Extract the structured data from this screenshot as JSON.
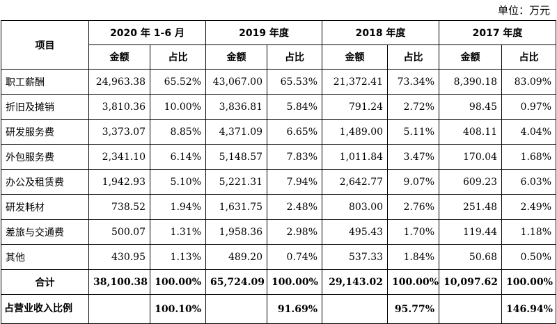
{
  "unit_label": "单位：万元",
  "header": {
    "item": "项目",
    "periods": [
      "2020 年 1-6 月",
      "2019 年度",
      "2018 年度",
      "2017 年度"
    ],
    "amount": "金额",
    "ratio": "占比"
  },
  "rows": [
    {
      "label": "职工薪酬",
      "cells": [
        "24,963.38",
        "65.52%",
        "43,067.00",
        "65.53%",
        "21,372.41",
        "73.34%",
        "8,390.18",
        "83.09%"
      ]
    },
    {
      "label": "折旧及摊销",
      "cells": [
        "3,810.36",
        "10.00%",
        "3,836.81",
        "5.84%",
        "791.24",
        "2.72%",
        "98.45",
        "0.97%"
      ]
    },
    {
      "label": "研发服务费",
      "cells": [
        "3,373.07",
        "8.85%",
        "4,371.09",
        "6.65%",
        "1,489.00",
        "5.11%",
        "408.11",
        "4.04%"
      ]
    },
    {
      "label": "外包服务费",
      "cells": [
        "2,341.10",
        "6.14%",
        "5,148.57",
        "7.83%",
        "1,011.84",
        "3.47%",
        "170.04",
        "1.68%"
      ]
    },
    {
      "label": "办公及租赁费",
      "cells": [
        "1,942.93",
        "5.10%",
        "5,221.31",
        "7.94%",
        "2,642.77",
        "9.07%",
        "609.23",
        "6.03%"
      ]
    },
    {
      "label": "研发耗材",
      "cells": [
        "738.52",
        "1.94%",
        "1,631.75",
        "2.48%",
        "803.00",
        "2.76%",
        "251.48",
        "2.49%"
      ]
    },
    {
      "label": "差旅与交通费",
      "cells": [
        "500.07",
        "1.31%",
        "1,958.36",
        "2.98%",
        "495.43",
        "1.70%",
        "119.44",
        "1.18%"
      ]
    },
    {
      "label": "其他",
      "cells": [
        "430.95",
        "1.13%",
        "489.20",
        "0.74%",
        "537.33",
        "1.84%",
        "50.68",
        "0.50%"
      ]
    }
  ],
  "total": {
    "label": "合计",
    "cells": [
      "38,100.38",
      "100.00%",
      "65,724.09",
      "100.00%",
      "29,143.02",
      "100.00%",
      "10,097.62",
      "100.00%"
    ]
  },
  "revenue_ratio": {
    "label": "占营业收入比例",
    "cells": [
      "",
      "100.10%",
      "",
      "91.69%",
      "",
      "95.77%",
      "",
      "146.94%"
    ]
  }
}
